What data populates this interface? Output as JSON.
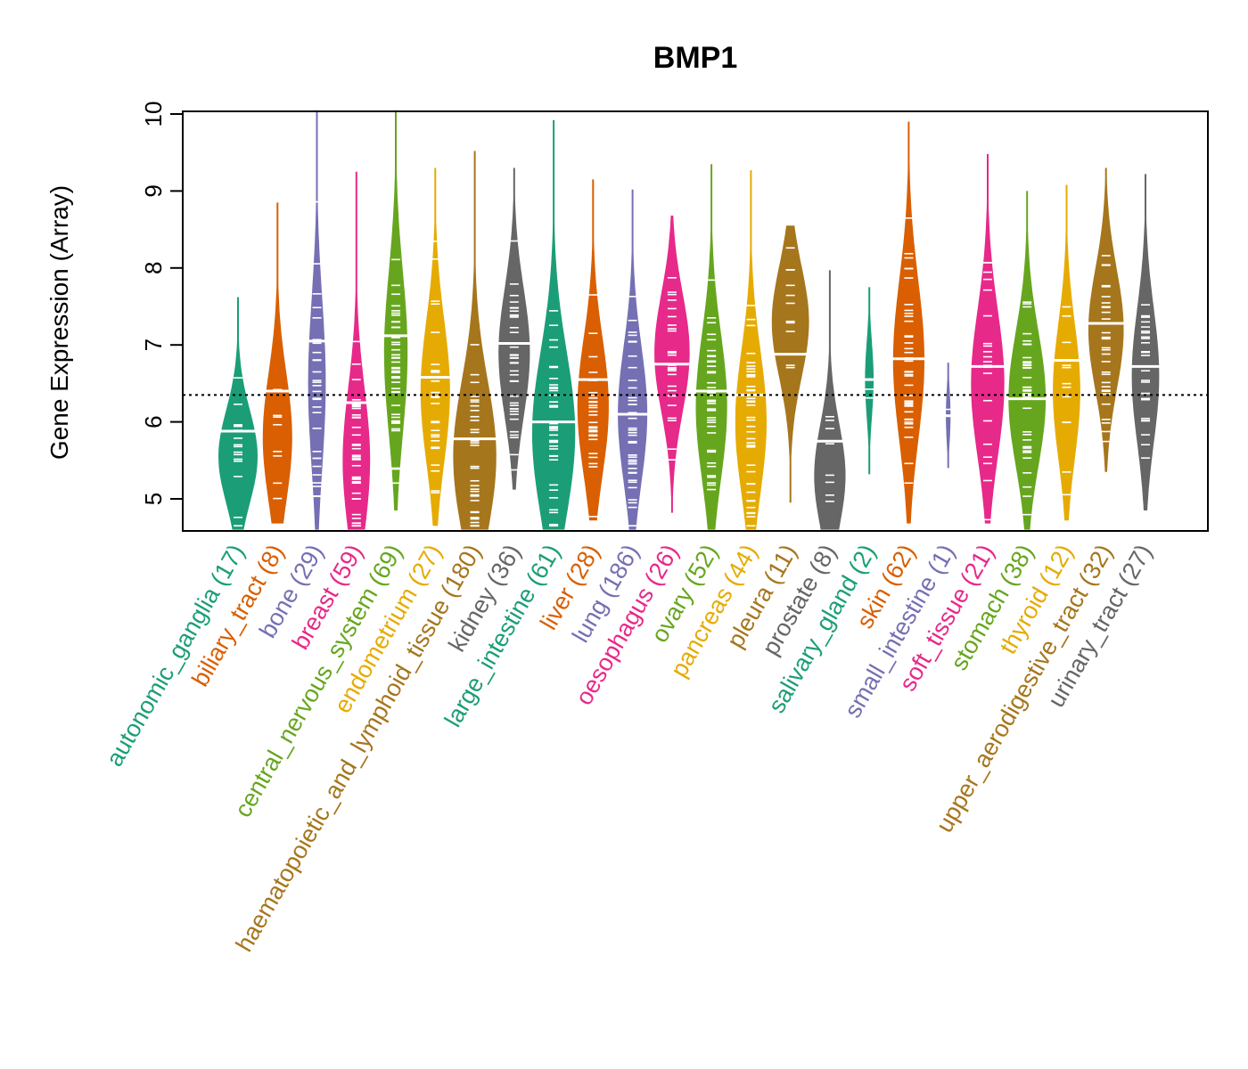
{
  "chart_data": {
    "type": "violin-beeswarm",
    "title": "BMP1",
    "xlabel": "",
    "ylabel": "Gene Expression (Array)",
    "ylim": [
      4.6,
      10.05
    ],
    "yticks": [
      5,
      6,
      7,
      8,
      9,
      10
    ],
    "reference_line": {
      "value": 6.35,
      "style": "dotted",
      "color": "#000000"
    },
    "grid": false,
    "legend": "none",
    "categories": [
      {
        "name": "autonomic_ganglia",
        "n": 17,
        "label": "autonomic_ganglia (17)",
        "color": "#1B9E77",
        "min": 4.6,
        "max": 7.62,
        "median": 5.88,
        "peak": 5.55,
        "width": 1.0
      },
      {
        "name": "biliary_tract",
        "n": 8,
        "label": "biliary_tract (8)",
        "color": "#D95F02",
        "min": 4.68,
        "max": 8.85,
        "median": 6.4,
        "peak": 5.8,
        "width": 0.75
      },
      {
        "name": "bone",
        "n": 29,
        "label": "bone (29)",
        "color": "#7570B3",
        "min": 4.6,
        "max": 10.05,
        "median": 7.05,
        "peak": 6.5,
        "width": 0.45
      },
      {
        "name": "breast",
        "n": 59,
        "label": "breast (59)",
        "color": "#E7298A",
        "min": 4.6,
        "max": 9.25,
        "median": 6.25,
        "peak": 5.5,
        "width": 0.7
      },
      {
        "name": "central_nervous_system",
        "n": 69,
        "label": "central_nervous_system (69)",
        "color": "#66A61E",
        "min": 4.85,
        "max": 10.05,
        "median": 7.12,
        "peak": 6.9,
        "width": 0.6
      },
      {
        "name": "endometrium",
        "n": 27,
        "label": "endometrium (27)",
        "color": "#E6AB02",
        "min": 4.65,
        "max": 9.3,
        "median": 6.58,
        "peak": 6.4,
        "width": 0.75
      },
      {
        "name": "haematopoietic_and_lymphoid_tissue",
        "n": 180,
        "label": "haematopoietic_and_lymphoid_tissue (180)",
        "color": "#A6761D",
        "min": 4.6,
        "max": 9.52,
        "median": 5.78,
        "peak": 5.55,
        "width": 1.1
      },
      {
        "name": "kidney",
        "n": 36,
        "label": "kidney (36)",
        "color": "#666666",
        "min": 5.12,
        "max": 9.3,
        "median": 7.02,
        "peak": 6.9,
        "width": 0.8
      },
      {
        "name": "large_intestine",
        "n": 61,
        "label": "large_intestine (61)",
        "color": "#1B9E77",
        "min": 4.6,
        "max": 9.92,
        "median": 6.0,
        "peak": 5.85,
        "width": 1.1
      },
      {
        "name": "liver",
        "n": 28,
        "label": "liver (28)",
        "color": "#D95F02",
        "min": 4.72,
        "max": 9.15,
        "median": 6.55,
        "peak": 6.2,
        "width": 0.8
      },
      {
        "name": "lung",
        "n": 186,
        "label": "lung (186)",
        "color": "#7570B3",
        "min": 4.6,
        "max": 9.02,
        "median": 6.1,
        "peak": 6.1,
        "width": 0.75
      },
      {
        "name": "oesophagus",
        "n": 26,
        "label": "oesophagus (26)",
        "color": "#E7298A",
        "min": 4.82,
        "max": 8.68,
        "median": 6.75,
        "peak": 6.9,
        "width": 0.9
      },
      {
        "name": "ovary",
        "n": 52,
        "label": "ovary (52)",
        "color": "#66A61E",
        "min": 4.6,
        "max": 9.35,
        "median": 6.4,
        "peak": 6.2,
        "width": 0.8
      },
      {
        "name": "pancreas",
        "n": 44,
        "label": "pancreas (44)",
        "color": "#E6AB02",
        "min": 4.6,
        "max": 9.27,
        "median": 6.35,
        "peak": 6.0,
        "width": 0.8
      },
      {
        "name": "pleura",
        "n": 11,
        "label": "pleura (11)",
        "color": "#A6761D",
        "min": 4.95,
        "max": 8.55,
        "median": 6.88,
        "peak": 7.3,
        "width": 0.95
      },
      {
        "name": "prostate",
        "n": 8,
        "label": "prostate (8)",
        "color": "#666666",
        "min": 4.6,
        "max": 7.97,
        "median": 5.75,
        "peak": 5.3,
        "width": 0.8
      },
      {
        "name": "salivary_gland",
        "n": 2,
        "label": "salivary_gland (2)",
        "color": "#1B9E77",
        "min": 5.32,
        "max": 7.75,
        "median": 6.55,
        "peak": 6.55,
        "width": 0.22
      },
      {
        "name": "skin",
        "n": 62,
        "label": "skin (62)",
        "color": "#D95F02",
        "min": 4.68,
        "max": 9.9,
        "median": 6.82,
        "peak": 6.8,
        "width": 0.8
      },
      {
        "name": "small_intestine",
        "n": 1,
        "label": "small_intestine (1)",
        "color": "#7570B3",
        "min": 5.4,
        "max": 6.77,
        "median": 6.08,
        "peak": 6.08,
        "width": 0.12
      },
      {
        "name": "soft_tissue",
        "n": 21,
        "label": "soft_tissue (21)",
        "color": "#E7298A",
        "min": 4.68,
        "max": 9.48,
        "median": 6.72,
        "peak": 6.5,
        "width": 0.85
      },
      {
        "name": "stomach",
        "n": 38,
        "label": "stomach (38)",
        "color": "#66A61E",
        "min": 4.6,
        "max": 9.0,
        "median": 6.3,
        "peak": 6.3,
        "width": 0.95
      },
      {
        "name": "thyroid",
        "n": 12,
        "label": "thyroid (12)",
        "color": "#E6AB02",
        "min": 4.72,
        "max": 9.08,
        "median": 6.8,
        "peak": 6.4,
        "width": 0.7
      },
      {
        "name": "upper_aerodigestive_tract",
        "n": 32,
        "label": "upper_aerodigestive_tract (32)",
        "color": "#A6761D",
        "min": 5.35,
        "max": 9.3,
        "median": 7.28,
        "peak": 7.2,
        "width": 0.9
      },
      {
        "name": "urinary_tract",
        "n": 27,
        "label": "urinary_tract (27)",
        "color": "#666666",
        "min": 4.85,
        "max": 9.22,
        "median": 6.72,
        "peak": 6.6,
        "width": 0.7
      }
    ]
  }
}
